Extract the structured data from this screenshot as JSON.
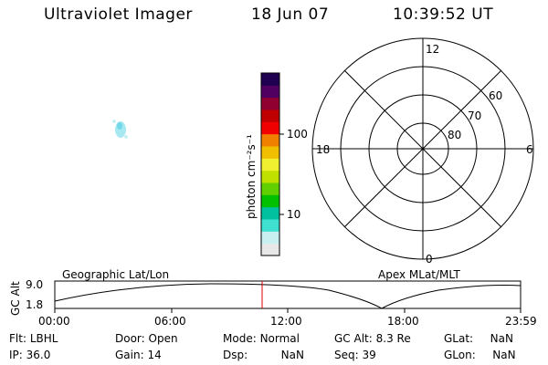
{
  "header": {
    "title": "Ultraviolet Imager",
    "date": "18 Jun 07",
    "time": "10:39:52 UT"
  },
  "colorbar": {
    "unit_label": "photon cm⁻²s⁻¹",
    "ticks": [
      "100",
      "10"
    ],
    "colors": [
      "#e8e8e8",
      "#c8f0f0",
      "#40e0d0",
      "#00c0a0",
      "#00c000",
      "#60d000",
      "#c0e000",
      "#f0f030",
      "#f0c000",
      "#f08000",
      "#f00000",
      "#c00000",
      "#900030",
      "#500060",
      "#200050"
    ]
  },
  "polar": {
    "labels": {
      "top": "12",
      "bottom": "0",
      "left": "18",
      "right": "6",
      "r60": "60",
      "r70": "70",
      "r80": "80"
    }
  },
  "timeline": {
    "left_title": "Geographic Lat/Lon",
    "right_title": "Apex MLat/MLT",
    "axis_label": "GC Alt",
    "y_ticks": [
      "9.0",
      "1.8"
    ],
    "x_ticks": [
      "00:00",
      "06:00",
      "12:00",
      "18:00",
      "23:59"
    ],
    "marker_color": "#e00000"
  },
  "info": {
    "row1": [
      {
        "label": "Flt:",
        "value": "LBHL"
      },
      {
        "label": "Door:",
        "value": "Open"
      },
      {
        "label": "Mode:",
        "value": "Normal"
      },
      {
        "label": "GC Alt:",
        "value": "8.3 Re"
      },
      {
        "label": "GLat:",
        "value": "NaN"
      }
    ],
    "row2": [
      {
        "label": "IP:",
        "value": "36.0"
      },
      {
        "label": "Gain:",
        "value": "14"
      },
      {
        "label": "Dsp:",
        "value": "NaN"
      },
      {
        "label": "Seq:",
        "value": "39"
      },
      {
        "label": "GLon:",
        "value": "NaN"
      }
    ]
  }
}
